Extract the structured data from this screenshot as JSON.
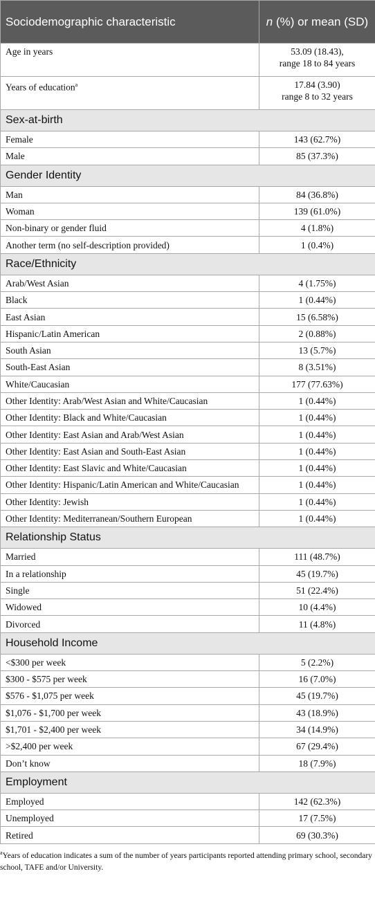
{
  "header": {
    "characteristic": "Sociodemographic characteristic",
    "n_symbol": "n",
    "value_heading": " (%) or mean (SD)"
  },
  "top_rows": [
    {
      "label": "Age in years",
      "value_lines": [
        "53.09 (18.43),",
        "range 18 to 84 years"
      ]
    },
    {
      "label": "Years of education",
      "note": "a",
      "value_lines": [
        "17.84 (3.90)",
        "range 8 to 32 years"
      ]
    }
  ],
  "sections": [
    {
      "title": "Sex-at-birth",
      "rows": [
        {
          "label": "Female",
          "value": "143 (62.7%)"
        },
        {
          "label": "Male",
          "value": "85 (37.3%)"
        }
      ]
    },
    {
      "title": "Gender Identity",
      "rows": [
        {
          "label": "Man",
          "value": "84 (36.8%)"
        },
        {
          "label": "Woman",
          "value": "139 (61.0%)"
        },
        {
          "label": "Non-binary or gender fluid",
          "value": "4 (1.8%)"
        },
        {
          "label": "Another term (no self-description provided)",
          "value": "1 (0.4%)"
        }
      ]
    },
    {
      "title": "Race/Ethnicity",
      "rows": [
        {
          "label": "Arab/West Asian",
          "value": "4 (1.75%)"
        },
        {
          "label": "Black",
          "value": "1 (0.44%)"
        },
        {
          "label": "East Asian",
          "value": "15 (6.58%)"
        },
        {
          "label": "Hispanic/Latin American",
          "value": "2 (0.88%)"
        },
        {
          "label": "South Asian",
          "value": "13 (5.7%)"
        },
        {
          "label": "South-East Asian",
          "value": "8 (3.51%)"
        },
        {
          "label": "White/Caucasian",
          "value": "177 (77.63%)"
        },
        {
          "label": "Other Identity: Arab/West Asian and White/Caucasian",
          "value": "1 (0.44%)"
        },
        {
          "label": "Other Identity: Black and White/Caucasian",
          "value": "1 (0.44%)"
        },
        {
          "label": "Other Identity: East Asian and Arab/West Asian",
          "value": "1 (0.44%)"
        },
        {
          "label": "Other Identity: East Asian and South-East Asian",
          "value": "1 (0.44%)"
        },
        {
          "label": "Other Identity: East Slavic and White/Caucasian",
          "value": "1 (0.44%)"
        },
        {
          "label": "Other Identity: Hispanic/Latin American and White/Caucasian",
          "value": "1 (0.44%)"
        },
        {
          "label": "Other Identity: Jewish",
          "value": "1 (0.44%)"
        },
        {
          "label": "Other Identity: Mediterranean/Southern European",
          "value": "1 (0.44%)"
        }
      ]
    },
    {
      "title": "Relationship Status",
      "rows": [
        {
          "label": "Married",
          "value": "111 (48.7%)"
        },
        {
          "label": "In a relationship",
          "value": "45 (19.7%)"
        },
        {
          "label": "Single",
          "value": "51 (22.4%)"
        },
        {
          "label": "Widowed",
          "value": "10 (4.4%)"
        },
        {
          "label": "Divorced",
          "value": "11 (4.8%)"
        }
      ]
    },
    {
      "title": "Household Income",
      "rows": [
        {
          "label": "<$300 per week",
          "value": "5 (2.2%)"
        },
        {
          "label": "$300 - $575 per week",
          "value": "16 (7.0%)"
        },
        {
          "label": "$576 - $1,075 per week",
          "value": "45 (19.7%)"
        },
        {
          "label": "$1,076 - $1,700 per week",
          "value": "43 (18.9%)"
        },
        {
          "label": "$1,701 - $2,400 per week",
          "value": "34 (14.9%)"
        },
        {
          "label": ">$2,400 per week",
          "value": "67 (29.4%)"
        },
        {
          "label": "Don’t know",
          "value": "18 (7.9%)"
        }
      ]
    },
    {
      "title": "Employment",
      "rows": [
        {
          "label": "Employed",
          "value": "142 (62.3%)"
        },
        {
          "label": "Unemployed",
          "value": "17 (7.5%)"
        },
        {
          "label": "Retired",
          "value": "69 (30.3%)"
        }
      ]
    }
  ],
  "footnote": {
    "marker": "a",
    "text": "Years of education indicates a sum of the number of years participants reported attending primary school, secondary school, TAFE and/or University."
  }
}
